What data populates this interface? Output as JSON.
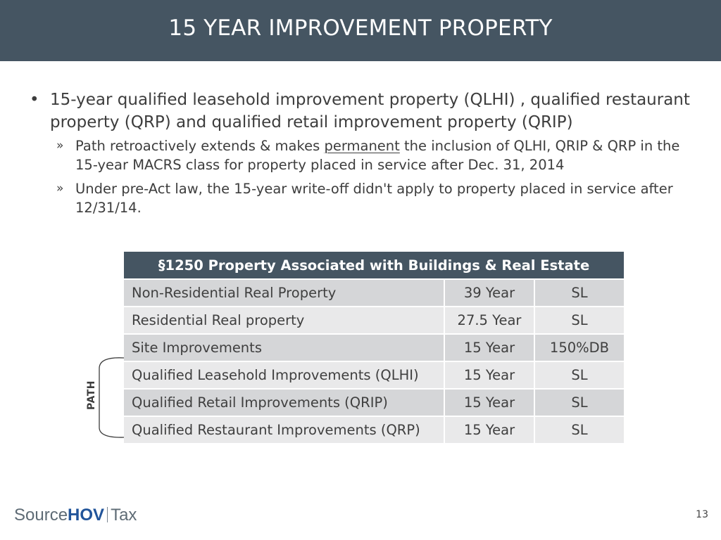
{
  "header": {
    "title": "15 YEAR IMPROVEMENT PROPERTY"
  },
  "bullets": {
    "main": {
      "text": "15-year qualified leasehold improvement property (QLHI) , qualified restaurant property (QRP) and qualified retail improvement property (QRIP)"
    },
    "subs": [
      {
        "before": "Path retroactively extends & makes ",
        "underlined": "permanent",
        "after": " the inclusion of QLHI, QRIP & QRP in the 15-year MACRS class for property placed in service after Dec. 31, 2014"
      },
      {
        "text": "Under pre-Act law, the 15-year write-off didn't apply to property placed in service after 12/31/14."
      }
    ]
  },
  "table": {
    "header": "§1250 Property Associated with Buildings & Real Estate",
    "rows": [
      [
        "Non-Residential Real Property",
        "39 Year",
        "SL"
      ],
      [
        "Residential Real property",
        "27.5 Year",
        "SL"
      ],
      [
        "Site Improvements",
        "15 Year",
        "150%DB"
      ],
      [
        "Qualified Leasehold Improvements (QLHI)",
        "15 Year",
        "SL"
      ],
      [
        "Qualified Retail Improvements (QRIP)",
        "15 Year",
        "SL"
      ],
      [
        "Qualified Restaurant Improvements (QRP)",
        "15 Year",
        "SL"
      ]
    ]
  },
  "bracket_label": "PATH",
  "footer": {
    "logo": {
      "part1": "Source",
      "part2": "HOV",
      "part3": "Tax"
    },
    "page_number": "13"
  },
  "colors": {
    "header_bg": "#455562",
    "row_dark": "#d5d6d8",
    "row_light": "#e9e9ea",
    "logo_blue": "#21549a",
    "logo_gray": "#5e6b75"
  }
}
